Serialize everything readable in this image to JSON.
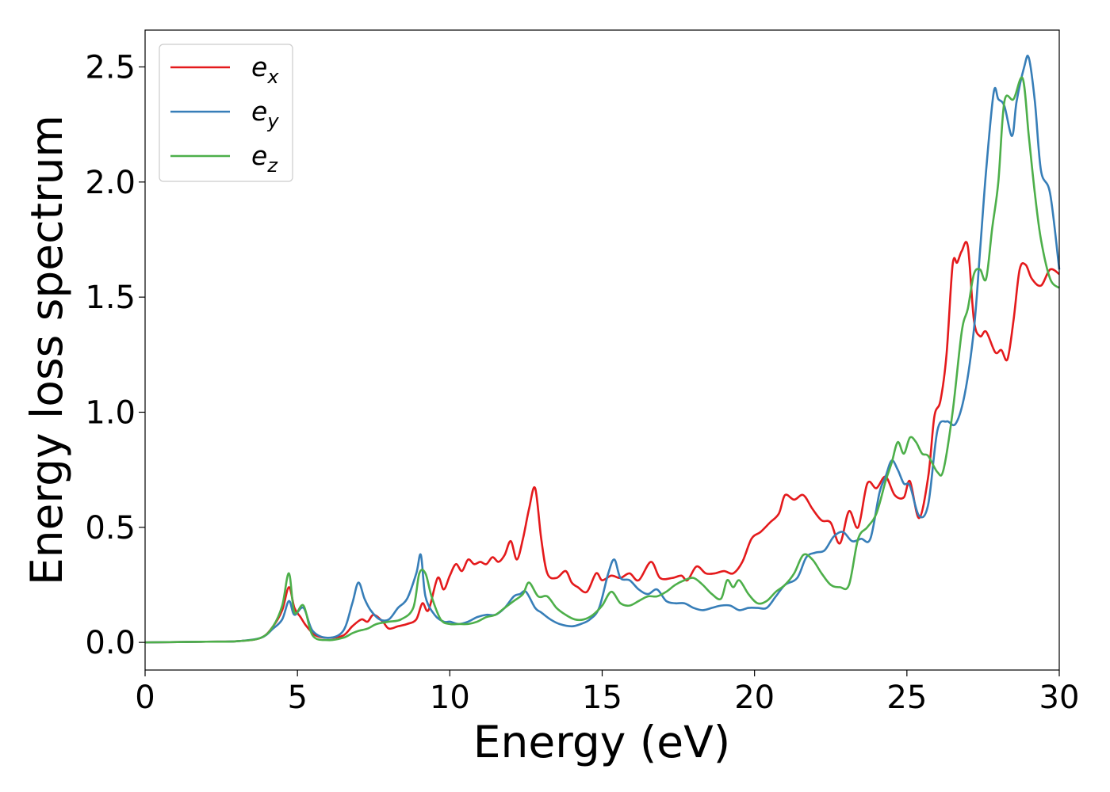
{
  "chart_data": {
    "type": "line",
    "title": "",
    "xlabel": "Energy (eV)",
    "ylabel": "Energy loss spectrum",
    "xlim": [
      0,
      30
    ],
    "ylim": [
      -0.12,
      2.66
    ],
    "xticks": [
      0,
      5,
      10,
      15,
      20,
      25,
      30
    ],
    "xtick_labels": [
      "0",
      "5",
      "10",
      "15",
      "20",
      "25",
      "30"
    ],
    "yticks": [
      0.0,
      0.5,
      1.0,
      1.5,
      2.0,
      2.5
    ],
    "ytick_labels": [
      "0.0",
      "0.5",
      "1.0",
      "1.5",
      "2.0",
      "2.5"
    ],
    "grid": false,
    "legend_position": "top-left",
    "series": [
      {
        "name": "e_x",
        "label_base": "e",
        "label_sub": "x",
        "color": "#e41a1c",
        "x": [
          0,
          2,
          3,
          3.8,
          4.2,
          4.5,
          4.72,
          4.9,
          5.1,
          5.3,
          5.6,
          6.0,
          6.5,
          6.8,
          7.1,
          7.3,
          7.5,
          7.8,
          8.0,
          8.3,
          8.6,
          8.9,
          9.1,
          9.3,
          9.6,
          9.8,
          10.0,
          10.2,
          10.4,
          10.6,
          10.8,
          11.0,
          11.2,
          11.4,
          11.6,
          11.8,
          12.0,
          12.2,
          12.4,
          12.6,
          12.8,
          13.0,
          13.2,
          13.5,
          13.8,
          14.0,
          14.2,
          14.5,
          14.8,
          15.0,
          15.3,
          15.6,
          15.9,
          16.2,
          16.6,
          16.9,
          17.3,
          17.6,
          17.8,
          18.1,
          18.4,
          18.7,
          19.0,
          19.3,
          19.6,
          19.9,
          20.2,
          20.5,
          20.8,
          21.0,
          21.3,
          21.6,
          21.9,
          22.2,
          22.5,
          22.8,
          23.1,
          23.4,
          23.7,
          24.0,
          24.3,
          24.6,
          24.9,
          25.1,
          25.4,
          25.7,
          25.9,
          26.1,
          26.3,
          26.5,
          26.65,
          26.8,
          27.0,
          27.2,
          27.4,
          27.6,
          27.9,
          28.1,
          28.3,
          28.5,
          28.7,
          28.9,
          29.1,
          29.4,
          29.7,
          30.0
        ],
        "y": [
          0.0,
          0.003,
          0.005,
          0.02,
          0.07,
          0.14,
          0.24,
          0.15,
          0.11,
          0.07,
          0.03,
          0.02,
          0.03,
          0.07,
          0.1,
          0.09,
          0.12,
          0.09,
          0.06,
          0.07,
          0.08,
          0.1,
          0.17,
          0.14,
          0.28,
          0.23,
          0.29,
          0.34,
          0.31,
          0.36,
          0.34,
          0.35,
          0.34,
          0.37,
          0.35,
          0.38,
          0.44,
          0.36,
          0.45,
          0.58,
          0.67,
          0.45,
          0.3,
          0.28,
          0.31,
          0.26,
          0.24,
          0.22,
          0.3,
          0.27,
          0.29,
          0.28,
          0.3,
          0.27,
          0.35,
          0.28,
          0.28,
          0.29,
          0.27,
          0.33,
          0.3,
          0.3,
          0.31,
          0.3,
          0.35,
          0.45,
          0.48,
          0.52,
          0.56,
          0.64,
          0.62,
          0.64,
          0.58,
          0.53,
          0.52,
          0.43,
          0.57,
          0.5,
          0.69,
          0.67,
          0.72,
          0.64,
          0.63,
          0.7,
          0.54,
          0.72,
          0.98,
          1.05,
          1.25,
          1.64,
          1.65,
          1.7,
          1.72,
          1.4,
          1.33,
          1.35,
          1.26,
          1.27,
          1.23,
          1.4,
          1.62,
          1.64,
          1.58,
          1.55,
          1.62,
          1.6
        ]
      },
      {
        "name": "e_y",
        "label_base": "e",
        "label_sub": "y",
        "color": "#377eb8",
        "x": [
          0,
          2,
          3,
          3.8,
          4.2,
          4.5,
          4.72,
          4.9,
          5.2,
          5.5,
          6.0,
          6.5,
          6.8,
          7.0,
          7.2,
          7.4,
          7.7,
          8.0,
          8.3,
          8.6,
          8.9,
          9.05,
          9.2,
          9.5,
          9.8,
          10.0,
          10.3,
          10.6,
          10.9,
          11.2,
          11.5,
          11.8,
          12.1,
          12.3,
          12.5,
          12.8,
          13.0,
          13.3,
          13.6,
          14.0,
          14.3,
          14.6,
          14.9,
          15.2,
          15.4,
          15.6,
          15.9,
          16.2,
          16.5,
          16.8,
          17.1,
          17.4,
          17.7,
          18.0,
          18.3,
          18.6,
          18.9,
          19.2,
          19.5,
          19.8,
          20.1,
          20.4,
          20.7,
          21.0,
          21.4,
          21.7,
          22.0,
          22.3,
          22.6,
          22.9,
          23.2,
          23.5,
          23.8,
          24.1,
          24.3,
          24.5,
          24.7,
          24.9,
          25.1,
          25.4,
          25.7,
          26.0,
          26.3,
          26.6,
          26.9,
          27.2,
          27.4,
          27.6,
          27.85,
          28.0,
          28.2,
          28.45,
          28.6,
          28.85,
          29.0,
          29.2,
          29.4,
          29.7,
          30.0
        ],
        "y": [
          0.0,
          0.003,
          0.005,
          0.02,
          0.06,
          0.1,
          0.18,
          0.12,
          0.15,
          0.05,
          0.02,
          0.05,
          0.17,
          0.26,
          0.19,
          0.14,
          0.1,
          0.1,
          0.15,
          0.19,
          0.3,
          0.38,
          0.2,
          0.12,
          0.09,
          0.09,
          0.08,
          0.09,
          0.11,
          0.12,
          0.12,
          0.15,
          0.2,
          0.21,
          0.22,
          0.15,
          0.13,
          0.1,
          0.08,
          0.07,
          0.08,
          0.1,
          0.15,
          0.3,
          0.36,
          0.28,
          0.27,
          0.23,
          0.21,
          0.23,
          0.18,
          0.17,
          0.17,
          0.15,
          0.14,
          0.15,
          0.16,
          0.16,
          0.14,
          0.15,
          0.15,
          0.15,
          0.2,
          0.25,
          0.28,
          0.37,
          0.39,
          0.4,
          0.46,
          0.48,
          0.44,
          0.45,
          0.45,
          0.65,
          0.72,
          0.79,
          0.75,
          0.69,
          0.68,
          0.55,
          0.6,
          0.92,
          0.96,
          0.95,
          1.08,
          1.36,
          1.7,
          2.05,
          2.39,
          2.36,
          2.33,
          2.2,
          2.35,
          2.5,
          2.54,
          2.35,
          2.05,
          1.95,
          1.62
        ]
      },
      {
        "name": "e_z",
        "label_base": "e",
        "label_sub": "z",
        "color": "#4daf4a",
        "x": [
          0,
          2,
          3,
          3.8,
          4.2,
          4.5,
          4.72,
          4.9,
          5.2,
          5.5,
          6.0,
          6.5,
          6.8,
          7.0,
          7.3,
          7.6,
          8.0,
          8.4,
          8.8,
          9.0,
          9.2,
          9.4,
          9.7,
          10.0,
          10.3,
          10.6,
          10.9,
          11.2,
          11.5,
          11.8,
          12.1,
          12.4,
          12.6,
          12.9,
          13.2,
          13.5,
          13.8,
          14.1,
          14.4,
          14.7,
          15.0,
          15.3,
          15.6,
          15.9,
          16.2,
          16.5,
          16.8,
          17.1,
          17.4,
          17.7,
          18.0,
          18.3,
          18.6,
          18.9,
          19.1,
          19.3,
          19.5,
          19.8,
          20.1,
          20.4,
          20.7,
          21.0,
          21.3,
          21.6,
          21.9,
          22.2,
          22.5,
          22.8,
          23.1,
          23.4,
          23.7,
          24.0,
          24.3,
          24.5,
          24.7,
          24.9,
          25.1,
          25.3,
          25.5,
          25.7,
          26.0,
          26.2,
          26.5,
          26.8,
          27.0,
          27.2,
          27.4,
          27.6,
          27.8,
          28.0,
          28.2,
          28.5,
          28.8,
          29.0,
          29.2,
          29.4,
          29.7,
          30.0
        ],
        "y": [
          0.0,
          0.003,
          0.005,
          0.02,
          0.07,
          0.16,
          0.3,
          0.13,
          0.16,
          0.03,
          0.01,
          0.02,
          0.04,
          0.05,
          0.06,
          0.08,
          0.09,
          0.1,
          0.15,
          0.3,
          0.3,
          0.2,
          0.1,
          0.08,
          0.08,
          0.08,
          0.09,
          0.11,
          0.12,
          0.15,
          0.18,
          0.21,
          0.26,
          0.2,
          0.2,
          0.15,
          0.12,
          0.1,
          0.1,
          0.12,
          0.16,
          0.22,
          0.17,
          0.16,
          0.18,
          0.2,
          0.2,
          0.22,
          0.25,
          0.27,
          0.28,
          0.25,
          0.21,
          0.19,
          0.27,
          0.24,
          0.27,
          0.21,
          0.17,
          0.18,
          0.22,
          0.25,
          0.3,
          0.38,
          0.36,
          0.3,
          0.25,
          0.24,
          0.25,
          0.45,
          0.5,
          0.56,
          0.7,
          0.78,
          0.87,
          0.82,
          0.89,
          0.87,
          0.82,
          0.81,
          0.74,
          0.75,
          1.0,
          1.35,
          1.45,
          1.6,
          1.62,
          1.58,
          1.8,
          2.0,
          2.35,
          2.36,
          2.45,
          2.2,
          1.95,
          1.75,
          1.58,
          1.54
        ]
      }
    ]
  }
}
